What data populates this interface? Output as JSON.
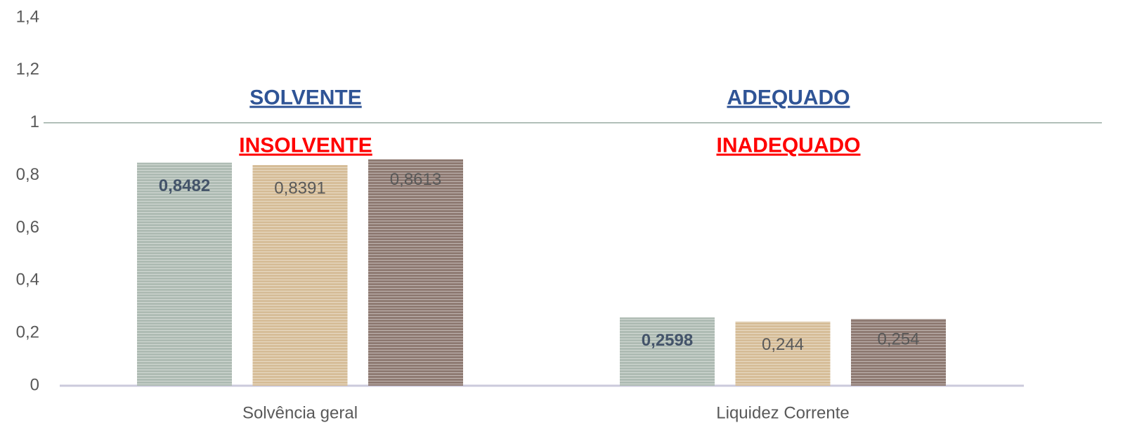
{
  "chart_data": {
    "type": "bar",
    "categories": [
      "Solvência geral",
      "Liquidez Corrente"
    ],
    "series": [
      {
        "color": "#aebbb3",
        "values": [
          0.8482,
          0.2598
        ],
        "value_labels": [
          "0,8482",
          "0,2598"
        ]
      },
      {
        "color": "#d6bd98",
        "values": [
          0.8391,
          0.244
        ],
        "value_labels": [
          "0,8391",
          "0,244"
        ]
      },
      {
        "color": "#8e7a72",
        "values": [
          0.8613,
          0.254
        ],
        "value_labels": [
          "0,8613",
          "0,254"
        ]
      }
    ],
    "ylim": [
      0,
      1.4
    ],
    "yticks": [
      0,
      {
        "value": 0.2,
        "label": "0,2"
      },
      {
        "value": 0.4,
        "label": "0,4"
      },
      {
        "value": 0.6,
        "label": "0,6"
      },
      {
        "value": 0.8,
        "label": "0,8"
      },
      1,
      {
        "value": 1.2,
        "label": "1,2"
      },
      {
        "value": 1.4,
        "label": "1,4"
      }
    ],
    "hline": 1,
    "annotations": [
      {
        "text": "SOLVENTE",
        "color": "#2f5496"
      },
      {
        "text": "INSOLVENTE",
        "color": "#ff0000"
      },
      {
        "text": "ADEQUADO",
        "color": "#2f5496"
      },
      {
        "text": "INADEQUADO",
        "color": "#ff0000"
      }
    ]
  }
}
